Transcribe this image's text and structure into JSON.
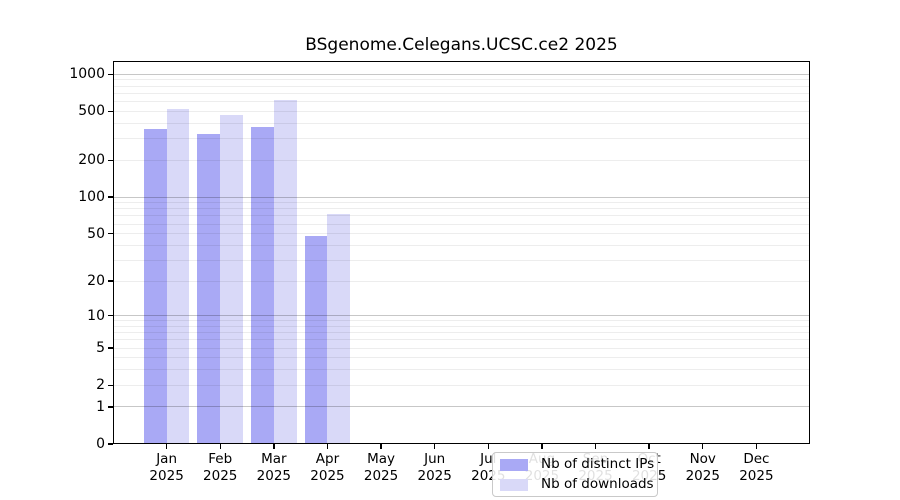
{
  "title": "BSgenome.Celegans.UCSC.ce2 2025",
  "colors": {
    "background": "#ffffff",
    "axis": "#000000",
    "grid_major": "#c6c6c6",
    "grid_minor": "#ececec",
    "distinct_ips_bar": "#a9a9f5",
    "downloads_bar": "#d9d9f8"
  },
  "chart_data": {
    "type": "bar",
    "title": "BSgenome.Celegans.UCSC.ce2 2025",
    "xlabel": "",
    "ylabel": "",
    "year": "2025",
    "categories": [
      "Jan",
      "Feb",
      "Mar",
      "Apr",
      "May",
      "Jun",
      "Jul",
      "Aug",
      "Sep",
      "Oct",
      "Nov",
      "Dec"
    ],
    "series": [
      {
        "name": "Nb of distinct IPs",
        "color": "#a9a9f5",
        "values": [
          360,
          330,
          370,
          48,
          0,
          0,
          0,
          0,
          0,
          0,
          0,
          0
        ]
      },
      {
        "name": "Nb of downloads",
        "color": "#d9d9f8",
        "values": [
          525,
          470,
          620,
          73,
          0,
          0,
          0,
          0,
          0,
          0,
          0,
          0
        ]
      }
    ],
    "yticks": [
      0,
      1,
      2,
      5,
      10,
      20,
      50,
      100,
      200,
      500,
      1000
    ],
    "yscale": "log1p",
    "ylim": [
      0,
      1280
    ],
    "grid": true,
    "legend_position": "bottom-center-left"
  }
}
